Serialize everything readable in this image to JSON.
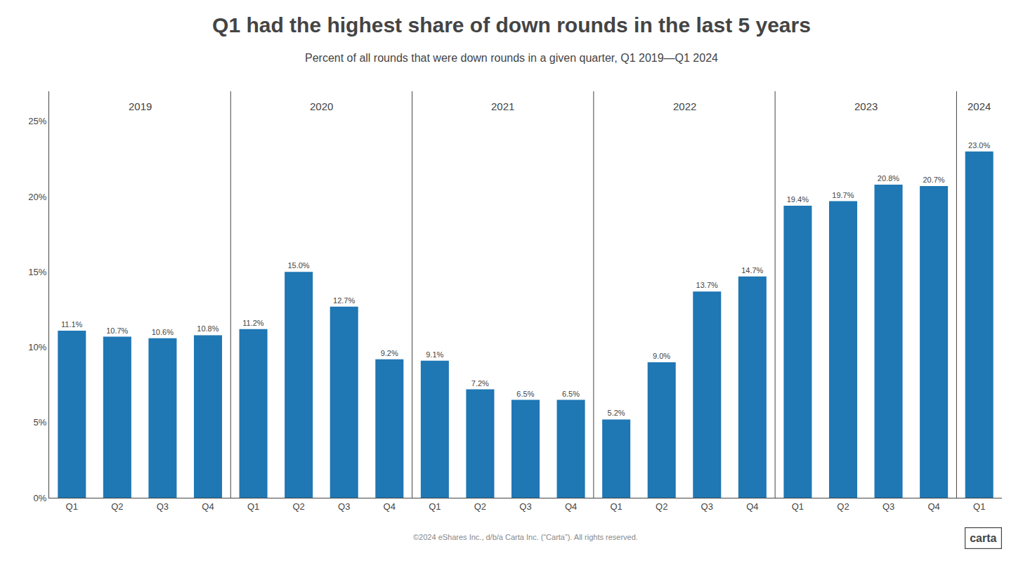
{
  "chart_data": {
    "type": "bar",
    "title": "Q1 had the highest share of down rounds in the last 5 years",
    "subtitle": "Percent of all rounds that were down rounds in a given quarter, Q1 2019—Q1 2024",
    "footer": "©2024 eShares Inc., d/b/a Carta Inc. (“Carta”). All rights reserved.",
    "logo": "carta",
    "categories": [
      "Q1",
      "Q2",
      "Q3",
      "Q4",
      "Q1",
      "Q2",
      "Q3",
      "Q4",
      "Q1",
      "Q2",
      "Q3",
      "Q4",
      "Q1",
      "Q2",
      "Q3",
      "Q4",
      "Q1",
      "Q2",
      "Q3",
      "Q4",
      "Q1"
    ],
    "values": [
      11.1,
      10.7,
      10.6,
      10.8,
      11.2,
      15.0,
      12.7,
      9.2,
      9.1,
      7.2,
      6.5,
      6.5,
      5.2,
      9.0,
      13.7,
      14.7,
      19.4,
      19.7,
      20.8,
      20.7,
      23.0
    ],
    "value_labels": [
      "11.1%",
      "10.7%",
      "10.6%",
      "10.8%",
      "11.2%",
      "15.0%",
      "12.7%",
      "9.2%",
      "9.1%",
      "7.2%",
      "6.5%",
      "6.5%",
      "5.2%",
      "9.0%",
      "13.7%",
      "14.7%",
      "19.4%",
      "19.7%",
      "20.8%",
      "20.7%",
      "23.0%"
    ],
    "data_labels": true,
    "annotations": [
      {
        "text": "2019",
        "x": 1.5
      },
      {
        "text": "2020",
        "x": 5.5
      },
      {
        "text": "2021",
        "x": 9.5
      },
      {
        "text": "2022",
        "x": 13.5
      },
      {
        "text": "2023",
        "x": 17.5
      },
      {
        "text": "2024",
        "x": 20.0
      }
    ],
    "dividers": [
      3.5,
      7.5,
      11.5,
      15.5,
      19.5
    ],
    "ylim": [
      0,
      27
    ],
    "yticks": [
      {
        "value": 0,
        "label": "0%"
      },
      {
        "value": 5,
        "label": "5%"
      },
      {
        "value": 10,
        "label": "10%"
      },
      {
        "value": 15,
        "label": "15%"
      },
      {
        "value": 20,
        "label": "20%"
      },
      {
        "value": 25,
        "label": "25%"
      }
    ],
    "grid": false
  }
}
